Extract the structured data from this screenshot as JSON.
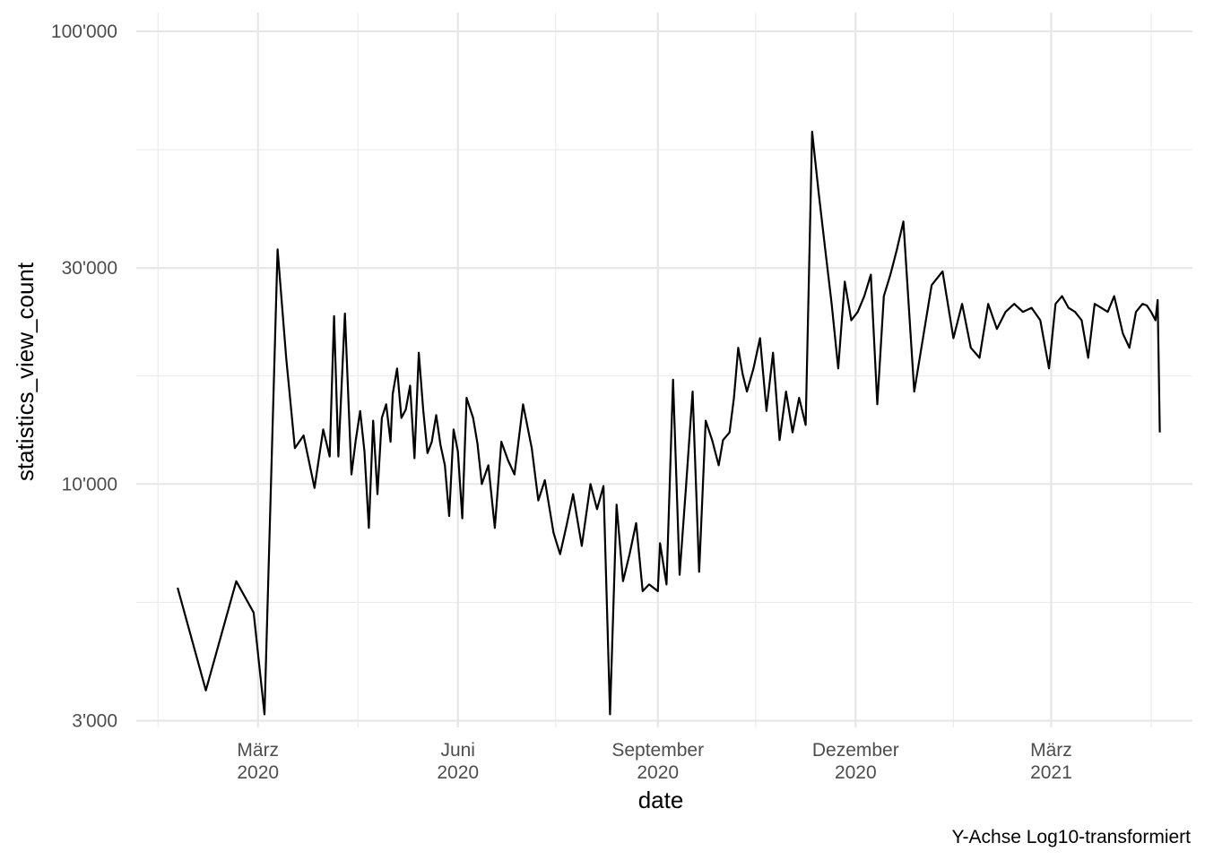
{
  "chart_data": {
    "type": "line",
    "xlabel": "date",
    "ylabel": "statistics_view_count",
    "caption": "Y-Achse Log10-transformiert",
    "y_scale": "log10",
    "ylim": [
      2900,
      110000
    ],
    "xlim": [
      "2020-01-05",
      "2021-05-05"
    ],
    "grid": true,
    "y_ticks": [
      {
        "value": 3000,
        "label": "3'000"
      },
      {
        "value": 10000,
        "label": "10'000"
      },
      {
        "value": 30000,
        "label": "30'000"
      },
      {
        "value": 100000,
        "label": "100'000"
      }
    ],
    "y_minor_ticks": [
      5477,
      17321,
      54772
    ],
    "x_ticks": [
      {
        "date": "2020-03-01",
        "line1": "März",
        "line2": "2020"
      },
      {
        "date": "2020-06-01",
        "line1": "Juni",
        "line2": "2020"
      },
      {
        "date": "2020-09-01",
        "line1": "September",
        "line2": "2020"
      },
      {
        "date": "2020-12-01",
        "line1": "Dezember",
        "line2": "2020"
      },
      {
        "date": "2021-03-01",
        "line1": "März",
        "line2": "2021"
      }
    ],
    "x_minor_ticks": [
      "2020-01-15",
      "2020-04-16",
      "2020-07-16",
      "2020-10-16",
      "2021-01-15",
      "2021-04-16"
    ],
    "series": [
      {
        "x": [
          "2020-01-24",
          "2020-02-06",
          "2020-02-20",
          "2020-02-28",
          "2020-03-04",
          "2020-03-10",
          "2020-03-14",
          "2020-03-18",
          "2020-03-22",
          "2020-03-27",
          "2020-03-31",
          "2020-04-03",
          "2020-04-05",
          "2020-04-07",
          "2020-04-10",
          "2020-04-13",
          "2020-04-15",
          "2020-04-17",
          "2020-04-19",
          "2020-04-21",
          "2020-04-23",
          "2020-04-25",
          "2020-04-27",
          "2020-04-29",
          "2020-05-01",
          "2020-05-02",
          "2020-05-04",
          "2020-05-06",
          "2020-05-08",
          "2020-05-10",
          "2020-05-12",
          "2020-05-14",
          "2020-05-16",
          "2020-05-18",
          "2020-05-20",
          "2020-05-22",
          "2020-05-24",
          "2020-05-26",
          "2020-05-28",
          "2020-05-30",
          "2020-06-01",
          "2020-06-03",
          "2020-06-05",
          "2020-06-08",
          "2020-06-10",
          "2020-06-12",
          "2020-06-15",
          "2020-06-18",
          "2020-06-21",
          "2020-06-24",
          "2020-06-27",
          "2020-07-01",
          "2020-07-05",
          "2020-07-08",
          "2020-07-11",
          "2020-07-15",
          "2020-07-18",
          "2020-07-21",
          "2020-07-24",
          "2020-07-28",
          "2020-08-01",
          "2020-08-04",
          "2020-08-07",
          "2020-08-10",
          "2020-08-13",
          "2020-08-16",
          "2020-08-19",
          "2020-08-22",
          "2020-08-25",
          "2020-08-28",
          "2020-09-01",
          "2020-09-02",
          "2020-09-05",
          "2020-09-08",
          "2020-09-11",
          "2020-09-14",
          "2020-09-17",
          "2020-09-20",
          "2020-09-23",
          "2020-09-26",
          "2020-09-29",
          "2020-10-01",
          "2020-10-04",
          "2020-10-06",
          "2020-10-08",
          "2020-10-10",
          "2020-10-12",
          "2020-10-15",
          "2020-10-18",
          "2020-10-21",
          "2020-10-24",
          "2020-10-27",
          "2020-10-30",
          "2020-11-02",
          "2020-11-05",
          "2020-11-08",
          "2020-11-11",
          "2020-11-14",
          "2020-11-17",
          "2020-11-20",
          "2020-11-23",
          "2020-11-26",
          "2020-11-29",
          "2020-12-02",
          "2020-12-05",
          "2020-12-08",
          "2020-12-11",
          "2020-12-14",
          "2020-12-17",
          "2020-12-20",
          "2020-12-23",
          "2020-12-28",
          "2021-01-05",
          "2021-01-10",
          "2021-01-15",
          "2021-01-19",
          "2021-01-23",
          "2021-01-27",
          "2021-01-31",
          "2021-02-04",
          "2021-02-08",
          "2021-02-12",
          "2021-02-16",
          "2021-02-20",
          "2021-02-24",
          "2021-02-28",
          "2021-03-03",
          "2021-03-06",
          "2021-03-09",
          "2021-03-12",
          "2021-03-15",
          "2021-03-18",
          "2021-03-21",
          "2021-03-24",
          "2021-03-27",
          "2021-03-30",
          "2021-04-03",
          "2021-04-06",
          "2021-04-09",
          "2021-04-12",
          "2021-04-14",
          "2021-04-16",
          "2021-04-18",
          "2021-04-19",
          "2021-04-20"
        ],
        "y": [
          5900,
          3500,
          6100,
          5200,
          3100,
          33000,
          19000,
          12000,
          12800,
          9800,
          13200,
          11500,
          23500,
          11500,
          23800,
          10500,
          12500,
          14500,
          11800,
          8000,
          13800,
          9500,
          14000,
          15000,
          12400,
          15800,
          18000,
          14000,
          14600,
          16500,
          11400,
          19500,
          14600,
          11700,
          12400,
          14200,
          12200,
          11000,
          8500,
          13200,
          11800,
          8400,
          15500,
          14000,
          12300,
          10000,
          11000,
          8000,
          12400,
          11300,
          10500,
          15000,
          12000,
          9200,
          10200,
          7800,
          7000,
          8100,
          9500,
          7300,
          10000,
          8800,
          9900,
          3100,
          9000,
          6100,
          7000,
          8200,
          5800,
          6000,
          5800,
          7400,
          6000,
          17000,
          6300,
          9900,
          16000,
          6400,
          13800,
          12500,
          11000,
          12500,
          13000,
          15500,
          20000,
          17500,
          16000,
          18000,
          21000,
          14500,
          19500,
          12500,
          16000,
          13000,
          15500,
          13500,
          60000,
          44000,
          33000,
          25000,
          18000,
          28000,
          23000,
          24000,
          26000,
          29000,
          15000,
          26000,
          29000,
          33000,
          38000,
          16000,
          27500,
          29500,
          21000,
          25000,
          20000,
          19000,
          25000,
          22000,
          24000,
          25000,
          24000,
          24500,
          23000,
          18000,
          25000,
          26000,
          24500,
          24000,
          23000,
          19000,
          25000,
          24500,
          24000,
          26000,
          21500,
          20000,
          24000,
          25000,
          24800,
          24000,
          23000,
          25500,
          13000
        ]
      }
    ]
  }
}
